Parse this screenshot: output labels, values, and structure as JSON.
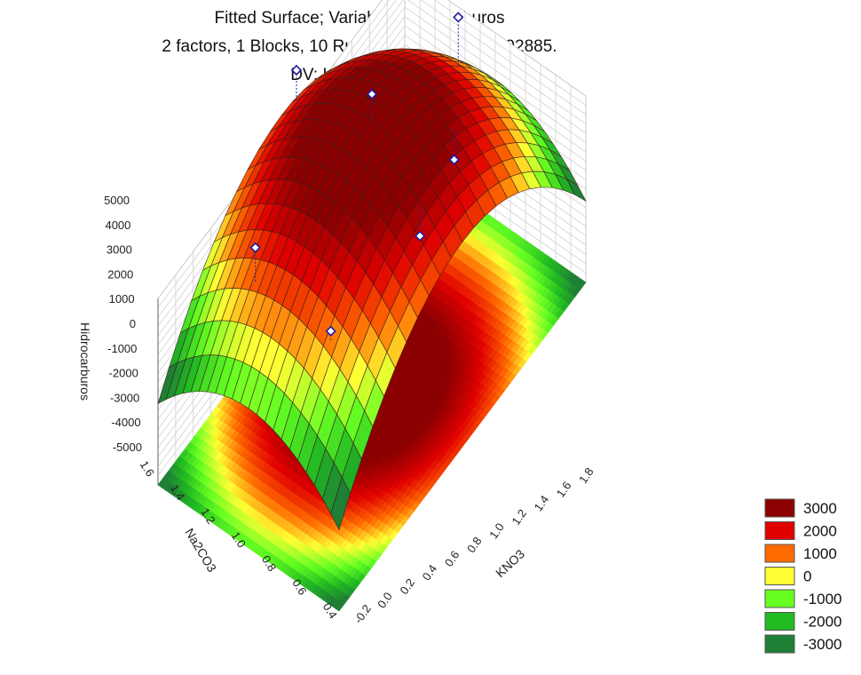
{
  "title": {
    "line1": "Fitted Surface; Variable: Hidrocarburos",
    "line2": "2 factors, 1 Blocks, 10 Runs; MS Residual=1492885.",
    "line3": "DV: Hidrocarburos"
  },
  "chart_data": {
    "type": "surface3d",
    "xlabel": "KNO3",
    "ylabel": "Na2CO3",
    "zlabel": "Hidrocarburos",
    "x_ticks": [
      "-0.2",
      "0.0",
      "0.2",
      "0.4",
      "0.6",
      "0.8",
      "1.0",
      "1.2",
      "1.4",
      "1.6",
      "1.8"
    ],
    "y_ticks": [
      "0.4",
      "0.6",
      "0.8",
      "1.0",
      "1.2",
      "1.4",
      "1.6"
    ],
    "z_ticks": [
      "-5000",
      "-4000",
      "-3000",
      "-2000",
      "-1000",
      "0",
      "1000",
      "2000",
      "3000",
      "4000",
      "5000"
    ],
    "xlim": [
      -0.2,
      1.8
    ],
    "ylim": [
      0.4,
      1.6
    ],
    "zlim": [
      -5000,
      5000
    ],
    "surface_peak": {
      "x": 0.8,
      "y": 1.0,
      "z": 3900
    },
    "observed_points": [
      {
        "x": 0.8,
        "y": 1.0,
        "z": 5000
      },
      {
        "x": 0.8,
        "y": 1.5,
        "z": 3800
      },
      {
        "x": 1.5,
        "y": 1.0,
        "z": 3400
      },
      {
        "x": 0.1,
        "y": 1.2,
        "z": 2500
      },
      {
        "x": 0.1,
        "y": 0.7,
        "z": 1200
      },
      {
        "x": 0.7,
        "y": 0.6,
        "z": 1500
      },
      {
        "x": 1.1,
        "y": 0.7,
        "z": 1500
      }
    ],
    "legend": {
      "placement": "bottom-right",
      "entries": [
        {
          "label": "3000",
          "color": "#8b0000"
        },
        {
          "label": "2000",
          "color": "#e00000"
        },
        {
          "label": "1000",
          "color": "#ff6a00"
        },
        {
          "label": "0",
          "color": "#ffff33"
        },
        {
          "label": "-1000",
          "color": "#66ff22"
        },
        {
          "label": "-2000",
          "color": "#22bb22"
        },
        {
          "label": "-3000",
          "color": "#1f7f35"
        }
      ]
    }
  }
}
